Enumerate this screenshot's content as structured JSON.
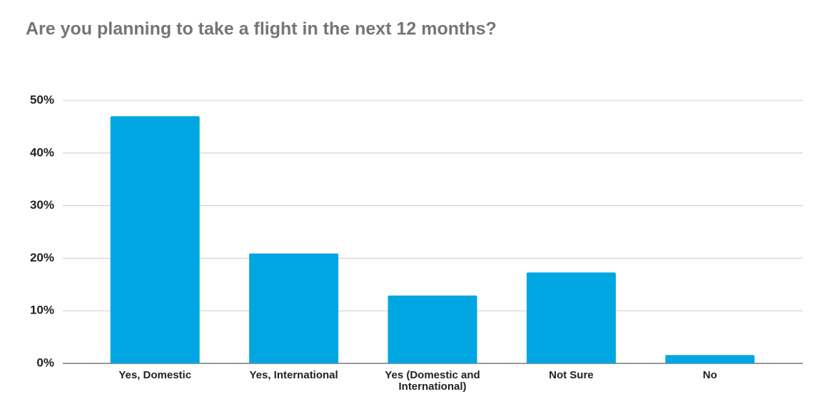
{
  "chart_data": {
    "type": "bar",
    "title": "Are you planning to take a flight in the next 12 months?",
    "categories": [
      "Yes, Domestic",
      "Yes, International",
      "Yes (Domestic and International)",
      "Not Sure",
      "No"
    ],
    "values": [
      47.0,
      20.9,
      12.9,
      17.3,
      1.6
    ],
    "color": "#00a6e2",
    "ylim": [
      0,
      50
    ],
    "yticks": [
      {
        "value": 0,
        "label": "0%"
      },
      {
        "value": 10,
        "label": "10%"
      },
      {
        "value": 20,
        "label": "20%"
      },
      {
        "value": 30,
        "label": "30%"
      },
      {
        "value": 40,
        "label": "40%"
      },
      {
        "value": 50,
        "label": "50%"
      }
    ],
    "grid": true
  }
}
